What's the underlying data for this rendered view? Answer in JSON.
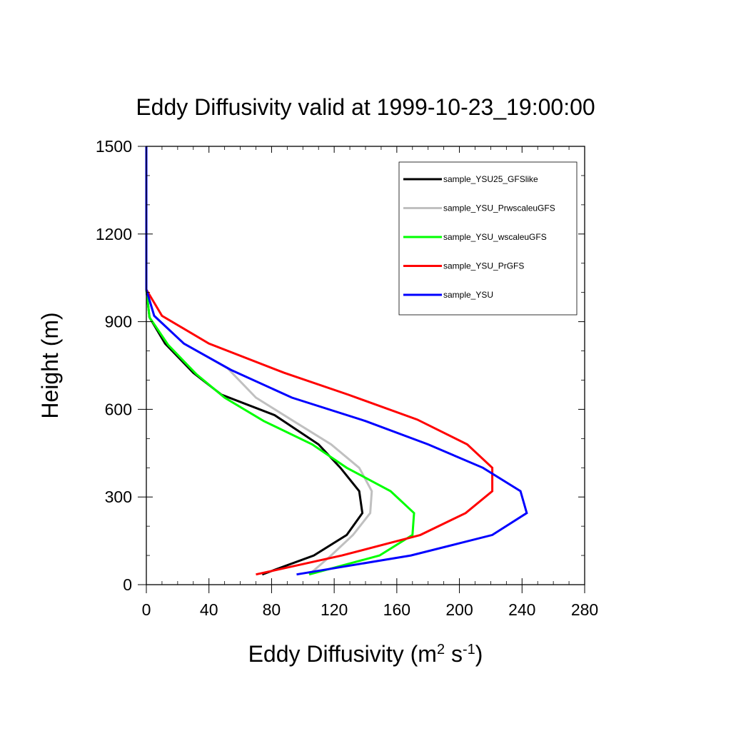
{
  "chart_data": {
    "type": "line",
    "title": "Eddy Diffusivity valid at 1999-10-23_19:00:00",
    "xlabel": "Eddy Diffusivity",
    "xlabel_unit": {
      "base1": "m",
      "sup1": "2",
      "base2": " s",
      "sup2": "-1"
    },
    "ylabel": "Height (m)",
    "xlim": [
      0,
      280
    ],
    "ylim": [
      0,
      1500
    ],
    "xticks": [
      0,
      40,
      80,
      120,
      160,
      200,
      240,
      280
    ],
    "yticks": [
      0,
      300,
      600,
      900,
      1200,
      1500
    ],
    "grid": false,
    "legend_position": "top-right",
    "series": [
      {
        "name": "sample_YSU25_GFSlike",
        "color": "#000000",
        "x": [
          74,
          107,
          128,
          138,
          136,
          124,
          110,
          82,
          48,
          30,
          12,
          2,
          0,
          0,
          0
        ],
        "y": [
          35,
          100,
          170,
          245,
          320,
          400,
          480,
          580,
          650,
          725,
          825,
          915,
          1010,
          1200,
          1500
        ]
      },
      {
        "name": "sample_YSU_PrwscaleuGFS",
        "color": "#c0c0c0",
        "x": [
          104,
          118,
          132,
          143,
          144,
          136,
          118,
          94,
          70,
          52,
          24,
          5,
          0,
          0,
          0
        ],
        "y": [
          35,
          100,
          170,
          245,
          320,
          400,
          480,
          560,
          640,
          740,
          825,
          920,
          1010,
          1200,
          1500
        ]
      },
      {
        "name": "sample_YSU_wscaleuGFS",
        "color": "#00ff00",
        "x": [
          104,
          149,
          170,
          171,
          156,
          128,
          106,
          75,
          50,
          32,
          14,
          2,
          0,
          0,
          0
        ],
        "y": [
          35,
          100,
          170,
          245,
          320,
          400,
          480,
          560,
          640,
          720,
          820,
          915,
          1010,
          1200,
          1500
        ]
      },
      {
        "name": "sample_YSU_PrGFS",
        "color": "#ff0000",
        "x": [
          70,
          125,
          175,
          204,
          221,
          221,
          205,
          173,
          129,
          88,
          40,
          10,
          0,
          0,
          0
        ],
        "y": [
          35,
          100,
          170,
          245,
          320,
          400,
          480,
          565,
          650,
          725,
          825,
          920,
          1010,
          1200,
          1500
        ]
      },
      {
        "name": "sample_YSU",
        "color": "#0000ff",
        "x": [
          96,
          169,
          221,
          243,
          239,
          215,
          180,
          140,
          93,
          54,
          24,
          5,
          0,
          0,
          0
        ],
        "y": [
          35,
          100,
          170,
          245,
          320,
          400,
          480,
          560,
          640,
          735,
          825,
          920,
          1010,
          1200,
          1500
        ]
      }
    ]
  }
}
